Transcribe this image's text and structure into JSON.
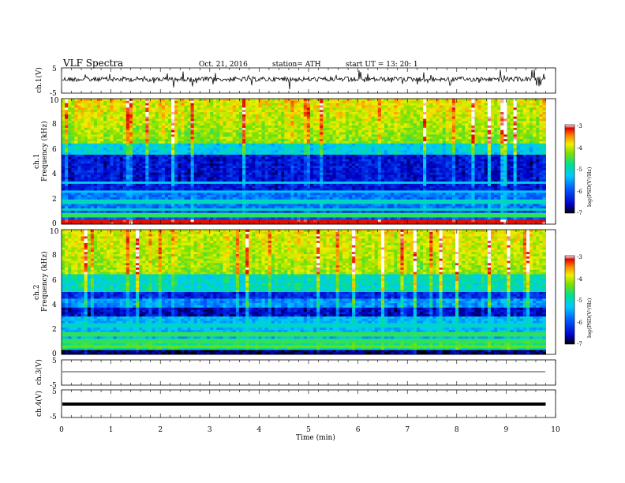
{
  "header": {
    "title": "VLF  Spectra",
    "date": "Oct. 21, 2016",
    "station": "station= ATH",
    "start": "start  UT  =    13: 20: 1"
  },
  "chart_data": {
    "type": "heatmap",
    "xlabel": "Time  (min)",
    "xlim": [
      0,
      10
    ],
    "x_ticks": [
      "0",
      "1",
      "2",
      "3",
      "4",
      "5",
      "6",
      "7",
      "8",
      "9",
      "10"
    ],
    "panels": [
      {
        "id": "ch1-wave",
        "type": "line",
        "ylabel": "ch.1(V)",
        "ylim": [
          -5,
          5
        ],
        "y_ticks": [
          "5",
          "-5"
        ],
        "baseline": 0.5,
        "data_end_min": 9.8
      },
      {
        "id": "ch1-spec",
        "type": "heatmap",
        "ylabel": "ch.1",
        "ylabel2": "Frequency  (kHz)",
        "ylim": [
          0,
          10
        ],
        "y_ticks": [
          "0",
          "2",
          "4",
          "6",
          "8",
          "10"
        ],
        "data_end_min": 9.8,
        "colorbar": {
          "label": "log(PSD(V²/Hz)",
          "range": [
            -7,
            -3
          ],
          "ticks": [
            "-3",
            "-4",
            "-5",
            "-6",
            "-7"
          ]
        }
      },
      {
        "id": "ch2-spec",
        "type": "heatmap",
        "ylabel": "ch.2",
        "ylabel2": "Frequency  (kHz)",
        "ylim": [
          0,
          10
        ],
        "y_ticks": [
          "0",
          "2",
          "4",
          "6",
          "8",
          "10"
        ],
        "data_end_min": 9.8,
        "colorbar": {
          "label": "log(PSD(V²/Hz)",
          "range": [
            -7,
            -3
          ],
          "ticks": [
            "-3",
            "-4",
            "-5",
            "-6",
            "-7"
          ]
        }
      },
      {
        "id": "ch3-wave",
        "type": "line",
        "ylabel": "ch.3(V)",
        "ylim": [
          -5,
          5
        ],
        "y_ticks": [
          "5",
          "-5"
        ],
        "baseline": 0,
        "data_end_min": 9.8
      },
      {
        "id": "ch4-wave",
        "type": "line",
        "ylabel": "ch.4(V)",
        "ylim": [
          -5,
          5
        ],
        "y_ticks": [
          "5",
          "-5"
        ],
        "baseline": 0,
        "data_end_min": 9.8
      }
    ]
  }
}
